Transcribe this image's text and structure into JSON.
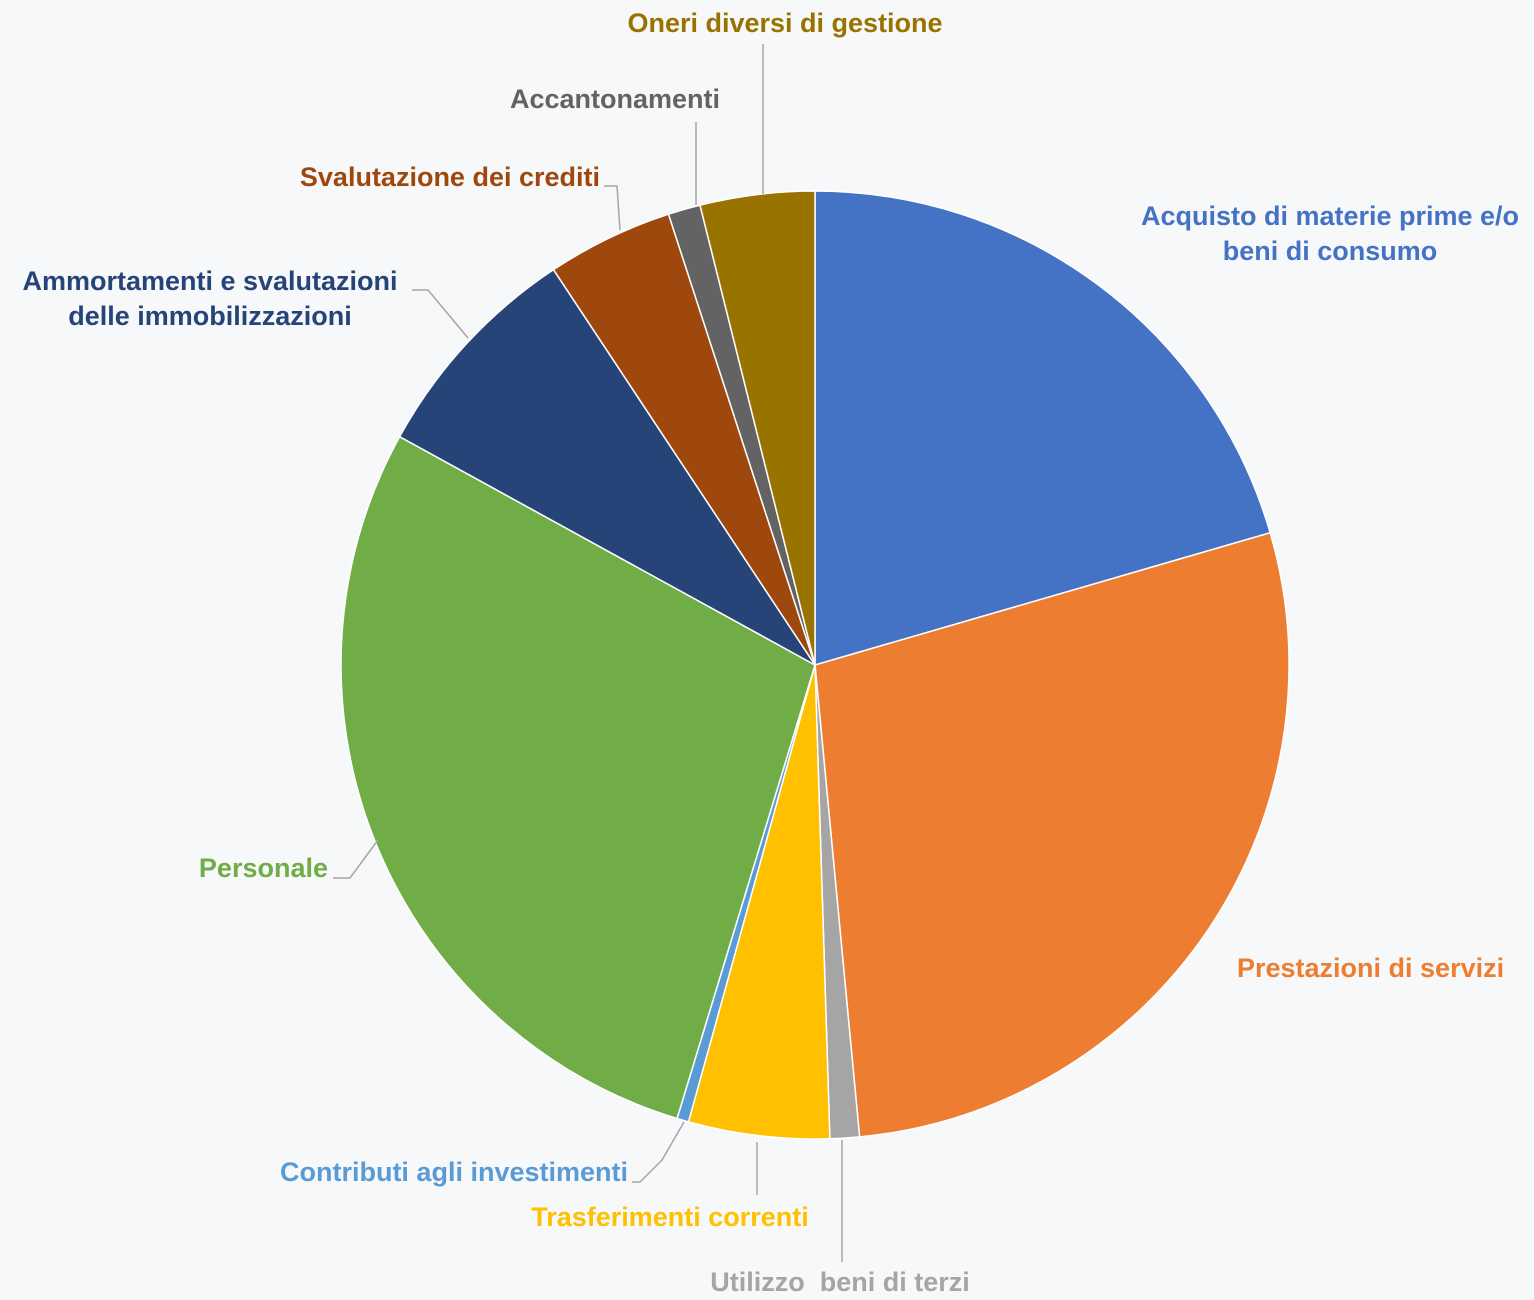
{
  "chart_data": {
    "type": "pie",
    "title": "",
    "slices": [
      {
        "label": "Acquisto di materie prime e/o beni di consumo",
        "label_lines": [
          "Acquisto di materie prime e/o",
          "beni di consumo"
        ],
        "value": 20.5,
        "color": "#4472c4"
      },
      {
        "label": "Prestazioni di servizi",
        "label_lines": [
          "Prestazioni di servizi"
        ],
        "value": 28.0,
        "color": "#ed7d31"
      },
      {
        "label": "Utilizzo  beni di terzi",
        "label_lines": [
          "Utilizzo  beni di terzi"
        ],
        "value": 1.0,
        "color": "#a5a5a5"
      },
      {
        "label": "Trasferimenti correnti",
        "label_lines": [
          "Trasferimenti correnti"
        ],
        "value": 4.8,
        "color": "#ffc000"
      },
      {
        "label": "Contributi agli investimenti",
        "label_lines": [
          "Contributi agli investimenti"
        ],
        "value": 0.4,
        "color": "#5b9bd5"
      },
      {
        "label": "Personale",
        "label_lines": [
          "Personale"
        ],
        "value": 28.3,
        "color": "#70ad47"
      },
      {
        "label": "Ammortamenti e svalutazioni delle immobilizzazioni",
        "label_lines": [
          "Ammortamenti e svalutazioni",
          "delle immobilizzazioni"
        ],
        "value": 7.7,
        "color": "#264478"
      },
      {
        "label": "Svalutazione dei crediti",
        "label_lines": [
          "Svalutazione dei crediti"
        ],
        "value": 4.3,
        "color": "#9e480e"
      },
      {
        "label": "Accantonamenti",
        "label_lines": [
          "Accantonamenti"
        ],
        "value": 1.1,
        "color": "#636363"
      },
      {
        "label": "Oneri diversi di gestione",
        "label_lines": [
          "Oneri diversi di gestione"
        ],
        "value": 3.9,
        "color": "#997300"
      }
    ],
    "legend": "none",
    "data_labels": "category names outside with leader lines"
  }
}
